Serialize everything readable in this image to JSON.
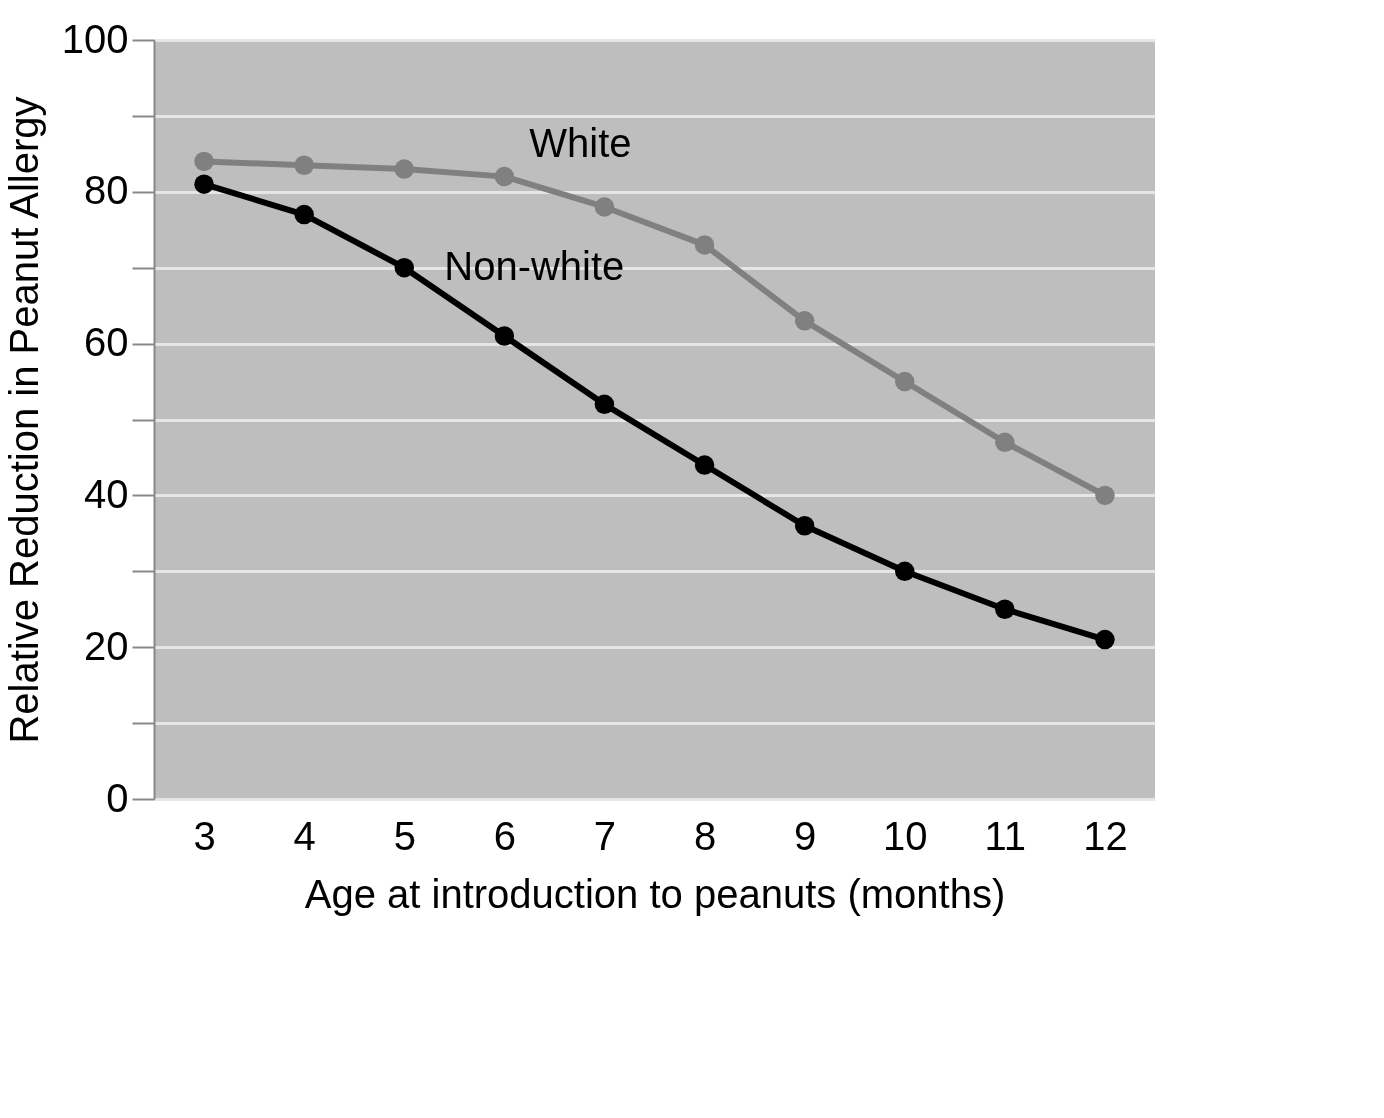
{
  "chart_data": {
    "type": "line",
    "xlabel": "Age at introduction to peanuts (months)",
    "ylabel": "Relative Reduction in Peanut Allergy",
    "categories": [
      "3",
      "4",
      "5",
      "6",
      "7",
      "8",
      "9",
      "10",
      "11",
      "12"
    ],
    "series": [
      {
        "name": "White",
        "color": "#808080",
        "values": [
          84,
          83.5,
          83,
          82,
          78,
          73,
          63,
          55,
          47,
          40
        ]
      },
      {
        "name": "Non-white",
        "color": "#000000",
        "values": [
          81,
          77,
          70,
          61,
          52,
          44,
          36,
          30,
          25,
          21
        ]
      }
    ],
    "ylim": [
      0,
      100
    ],
    "yticks": [
      0,
      {
        "value": 10,
        "label": null
      },
      20,
      {
        "value": 30,
        "label": null
      },
      40,
      {
        "value": 50,
        "label": null
      },
      60,
      {
        "value": 70,
        "label": null
      },
      80,
      {
        "value": 90,
        "label": null
      },
      100
    ],
    "grid": "y",
    "legend": false,
    "marker": "circle",
    "line_style": "solid"
  }
}
